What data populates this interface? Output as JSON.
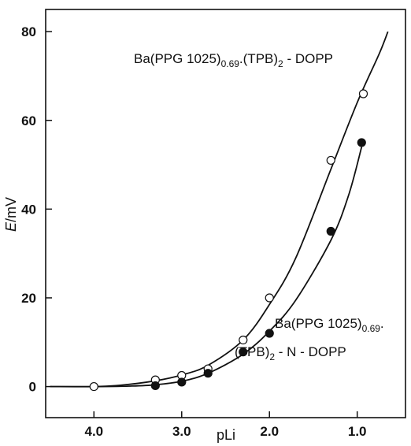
{
  "chart_data": {
    "type": "scatter",
    "xlabel": "pLi",
    "ylabel_italic": "E",
    "ylabel_unit": "/mV",
    "xlim": [
      4.55,
      0.45
    ],
    "ylim": [
      -7,
      85
    ],
    "x_ticks": [
      {
        "value": 4.0,
        "label": "4.0"
      },
      {
        "value": 3.0,
        "label": "3.0"
      },
      {
        "value": 2.0,
        "label": "2.0"
      },
      {
        "value": 1.0,
        "label": "1.0"
      }
    ],
    "y_ticks": [
      {
        "value": 0,
        "label": "0"
      },
      {
        "value": 20,
        "label": "20"
      },
      {
        "value": 40,
        "label": "40"
      },
      {
        "value": 60,
        "label": "60"
      },
      {
        "value": 80,
        "label": "80"
      }
    ],
    "series": [
      {
        "marker": "open-circle",
        "label_lines": [
          {
            "main": "Ba(PPG 1025)",
            "sub": "0.69",
            "rest": ".(TPB)",
            "sub2": "2",
            "rest2": " - DOPP"
          }
        ],
        "points": [
          {
            "x": 4.0,
            "y": 0.0
          },
          {
            "x": 3.3,
            "y": 1.5
          },
          {
            "x": 3.0,
            "y": 2.5
          },
          {
            "x": 2.7,
            "y": 4.0
          },
          {
            "x": 2.3,
            "y": 10.5
          },
          {
            "x": 2.0,
            "y": 20.0
          },
          {
            "x": 1.3,
            "y": 51.0
          },
          {
            "x": 0.93,
            "y": 66.0
          }
        ],
        "curve": [
          {
            "x": 4.5,
            "y": 0.0
          },
          {
            "x": 4.0,
            "y": 0.0
          },
          {
            "x": 3.7,
            "y": 0.3
          },
          {
            "x": 3.3,
            "y": 1.3
          },
          {
            "x": 3.0,
            "y": 2.6
          },
          {
            "x": 2.7,
            "y": 4.8
          },
          {
            "x": 2.3,
            "y": 10.5
          },
          {
            "x": 2.0,
            "y": 18.5
          },
          {
            "x": 1.7,
            "y": 29.0
          },
          {
            "x": 1.3,
            "y": 49.0
          },
          {
            "x": 1.0,
            "y": 64.0
          },
          {
            "x": 0.75,
            "y": 75.0
          },
          {
            "x": 0.65,
            "y": 80.0
          }
        ]
      },
      {
        "marker": "filled-circle",
        "label_lines": [
          {
            "main": "Ba(PPG 1025)",
            "sub": "0.69",
            "rest": "."
          },
          {
            "main": "(TPB)",
            "sub": "2",
            "rest": " - N - DOPP"
          }
        ],
        "points": [
          {
            "x": 3.3,
            "y": 0.2
          },
          {
            "x": 3.0,
            "y": 1.0
          },
          {
            "x": 2.7,
            "y": 3.0
          },
          {
            "x": 2.3,
            "y": 7.8
          },
          {
            "x": 2.0,
            "y": 12.0
          },
          {
            "x": 1.3,
            "y": 35.0
          },
          {
            "x": 0.95,
            "y": 55.0
          }
        ],
        "curve": [
          {
            "x": 4.5,
            "y": 0.0
          },
          {
            "x": 4.0,
            "y": 0.0
          },
          {
            "x": 3.6,
            "y": 0.1
          },
          {
            "x": 3.3,
            "y": 0.4
          },
          {
            "x": 3.0,
            "y": 1.2
          },
          {
            "x": 2.7,
            "y": 3.0
          },
          {
            "x": 2.3,
            "y": 7.3
          },
          {
            "x": 2.0,
            "y": 12.5
          },
          {
            "x": 1.7,
            "y": 19.5
          },
          {
            "x": 1.3,
            "y": 33.0
          },
          {
            "x": 1.1,
            "y": 43.0
          },
          {
            "x": 0.95,
            "y": 54.0
          }
        ]
      }
    ],
    "grid": false
  }
}
